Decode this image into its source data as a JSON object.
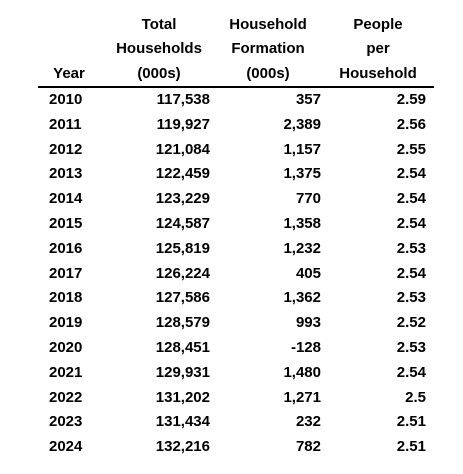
{
  "header": {
    "year": "Year",
    "total_households": [
      "Total",
      "Households",
      "(000s)"
    ],
    "household_formation": [
      "Household",
      "Formation",
      "(000s)"
    ],
    "people_per_household": [
      "People",
      "per",
      "Household"
    ]
  },
  "rows": [
    {
      "year": "2010",
      "total": "117,538",
      "formation": "357",
      "people": "2.59"
    },
    {
      "year": "2011",
      "total": "119,927",
      "formation": "2,389",
      "people": "2.56"
    },
    {
      "year": "2012",
      "total": "121,084",
      "formation": "1,157",
      "people": "2.55"
    },
    {
      "year": "2013",
      "total": "122,459",
      "formation": "1,375",
      "people": "2.54"
    },
    {
      "year": "2014",
      "total": "123,229",
      "formation": "770",
      "people": "2.54"
    },
    {
      "year": "2015",
      "total": "124,587",
      "formation": "1,358",
      "people": "2.54"
    },
    {
      "year": "2016",
      "total": "125,819",
      "formation": "1,232",
      "people": "2.53"
    },
    {
      "year": "2017",
      "total": "126,224",
      "formation": "405",
      "people": "2.54"
    },
    {
      "year": "2018",
      "total": "127,586",
      "formation": "1,362",
      "people": "2.53"
    },
    {
      "year": "2019",
      "total": "128,579",
      "formation": "993",
      "people": "2.52"
    },
    {
      "year": "2020",
      "total": "128,451",
      "formation": "-128",
      "people": "2.53"
    },
    {
      "year": "2021",
      "total": "129,931",
      "formation": "1,480",
      "people": "2.54"
    },
    {
      "year": "2022",
      "total": "131,202",
      "formation": "1,271",
      "people": "2.5"
    },
    {
      "year": "2023",
      "total": "131,434",
      "formation": "232",
      "people": "2.51"
    },
    {
      "year": "2024",
      "total": "132,216",
      "formation": "782",
      "people": "2.51"
    }
  ]
}
